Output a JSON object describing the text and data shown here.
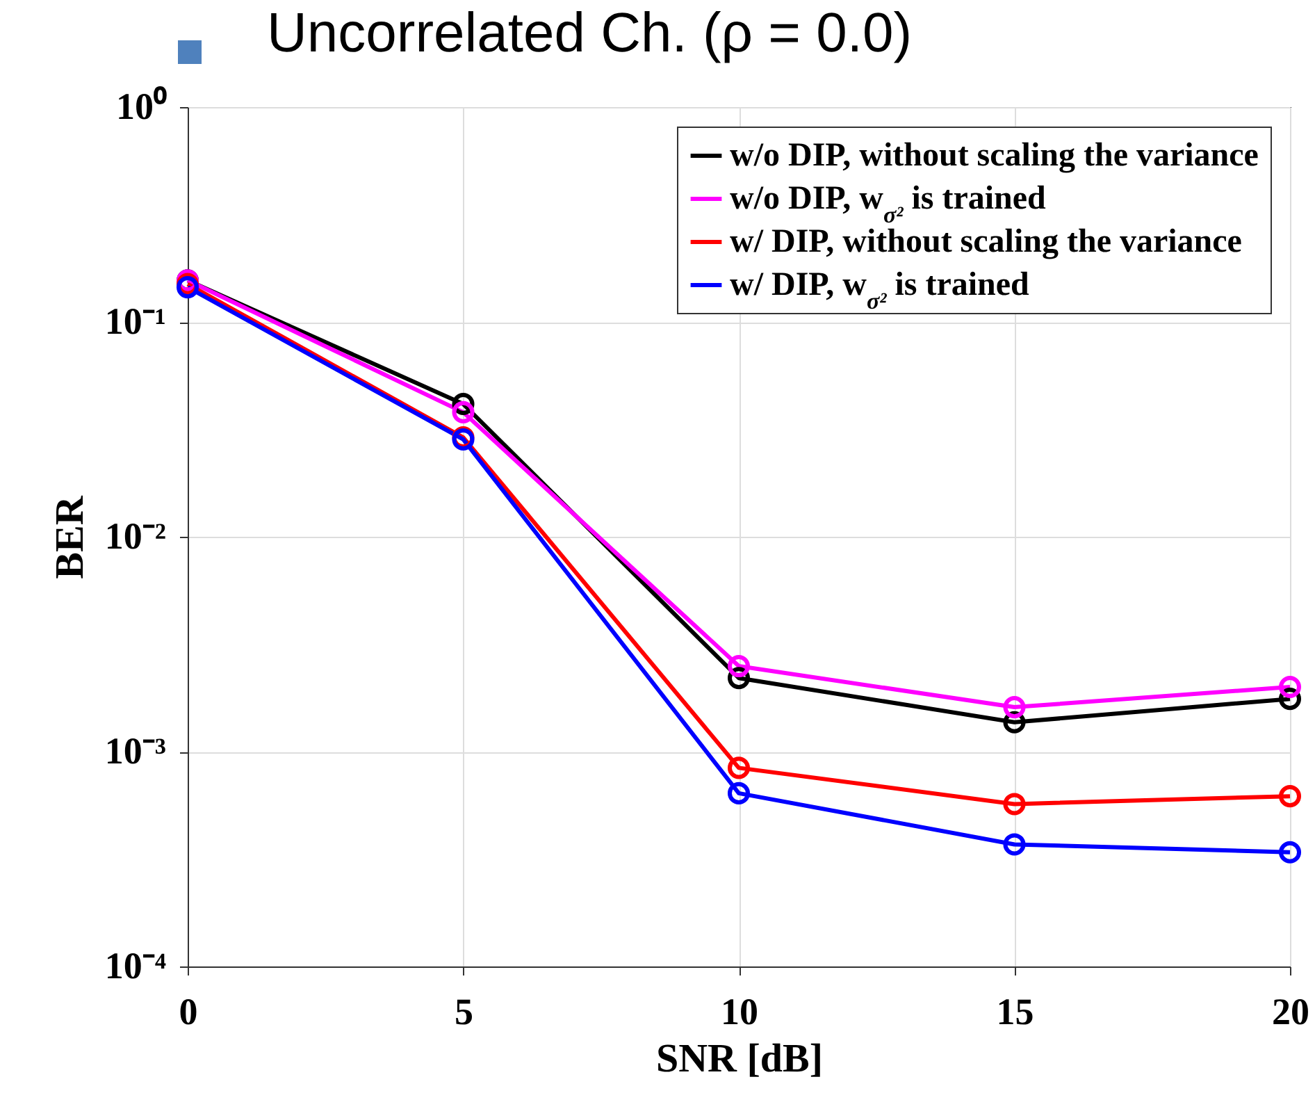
{
  "chart_data": {
    "type": "line",
    "title": "Uncorrelated Ch. (ρ = 0.0)",
    "xlabel": "SNR [dB]",
    "ylabel": "BER",
    "x": [
      0,
      5,
      10,
      15,
      20
    ],
    "series": [
      {
        "name": "w/o DIP, without scaling the variance",
        "color": "#000000",
        "values": [
          0.156,
          0.0415,
          0.0022,
          0.00137,
          0.00176
        ]
      },
      {
        "name": "w/o DIP, w$_{σ²}$ is trained",
        "color": "#ff00ff",
        "values": [
          0.156,
          0.038,
          0.0025,
          0.00161,
          0.002
        ]
      },
      {
        "name": "w/ DIP, without scaling the variance",
        "color": "#ff0000",
        "values": [
          0.15,
          0.029,
          0.00084,
          0.00057,
          0.00062
        ]
      },
      {
        "name": "w/ DIP, w$_{σ²}$ is trained",
        "color": "#0000ff",
        "values": [
          0.145,
          0.0284,
          0.00064,
          0.00037,
          0.00034
        ]
      }
    ],
    "xlim": [
      0,
      20
    ],
    "xticks": [
      0,
      5,
      10,
      15,
      20
    ],
    "ylim": [
      0.0001,
      1
    ],
    "yticks": [
      {
        "value": 0.0001,
        "label": "10⁻⁴"
      },
      {
        "value": 0.001,
        "label": "10⁻³"
      },
      {
        "value": 0.01,
        "label": "10⁻²"
      },
      {
        "value": 0.1,
        "label": "10⁻¹"
      },
      {
        "value": 1,
        "label": "10⁰"
      }
    ],
    "log": "y",
    "grid": true,
    "legend": "top right",
    "marker": "circle",
    "line_style": "solid"
  }
}
